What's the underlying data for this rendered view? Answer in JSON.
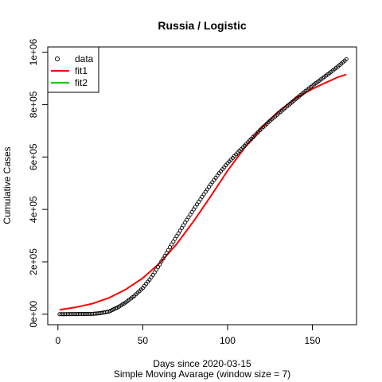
{
  "chart_data": {
    "type": "line",
    "title": "Russia / Logistic",
    "xlabel": "Days since 2020-03-15",
    "xlabel_sub": "Simple Moving Avarage (window size = 7)",
    "ylabel": "Cumulative Cases",
    "xlim": [
      -6,
      176
    ],
    "ylim": [
      -40000,
      1020000
    ],
    "x_ticks": [
      0,
      50,
      100,
      150
    ],
    "x_tick_labels": [
      "0",
      "50",
      "100",
      "150"
    ],
    "y_ticks": [
      0,
      200000,
      400000,
      600000,
      800000,
      1000000
    ],
    "y_tick_labels": [
      "0e+00",
      "2e+05",
      "4e+05",
      "6e+05",
      "8e+05",
      "1e+06"
    ],
    "legend": {
      "position": "top-left",
      "entries": [
        {
          "label": "data",
          "symbol": "circle",
          "color": "#000000"
        },
        {
          "label": "fit1",
          "symbol": "line",
          "color": "#ff0000"
        },
        {
          "label": "fit2",
          "symbol": "line",
          "color": "#00cd00"
        }
      ]
    },
    "series": [
      {
        "name": "data",
        "style": "points",
        "color": "#000000",
        "x": [
          1,
          20,
          25,
          30,
          35,
          40,
          45,
          50,
          55,
          60,
          65,
          70,
          75,
          80,
          85,
          90,
          95,
          100,
          105,
          110,
          115,
          120,
          125,
          130,
          135,
          140,
          145,
          150,
          155,
          160,
          165,
          170
        ],
        "y": [
          0,
          1000,
          4000,
          10000,
          25000,
          45000,
          70000,
          100000,
          140000,
          190000,
          245000,
          298000,
          350000,
          400000,
          448000,
          495000,
          538000,
          576000,
          610000,
          643000,
          676000,
          708000,
          738000,
          766000,
          793000,
          820000,
          847000,
          872000,
          896000,
          920000,
          945000,
          973000
        ]
      },
      {
        "name": "fit1",
        "style": "line",
        "color": "#ff0000",
        "x": [
          1,
          10,
          20,
          30,
          40,
          50,
          60,
          70,
          80,
          90,
          100,
          110,
          120,
          130,
          140,
          150,
          155,
          160,
          165,
          170
        ],
        "y": [
          17000,
          26000,
          40000,
          62000,
          95000,
          138000,
          195000,
          268000,
          355000,
          450000,
          548000,
          635000,
          711000,
          774000,
          824000,
          860000,
          875000,
          890000,
          905000,
          915000
        ]
      },
      {
        "name": "fit2",
        "style": "line",
        "color": "#00cd00",
        "x": [],
        "y": []
      }
    ]
  }
}
